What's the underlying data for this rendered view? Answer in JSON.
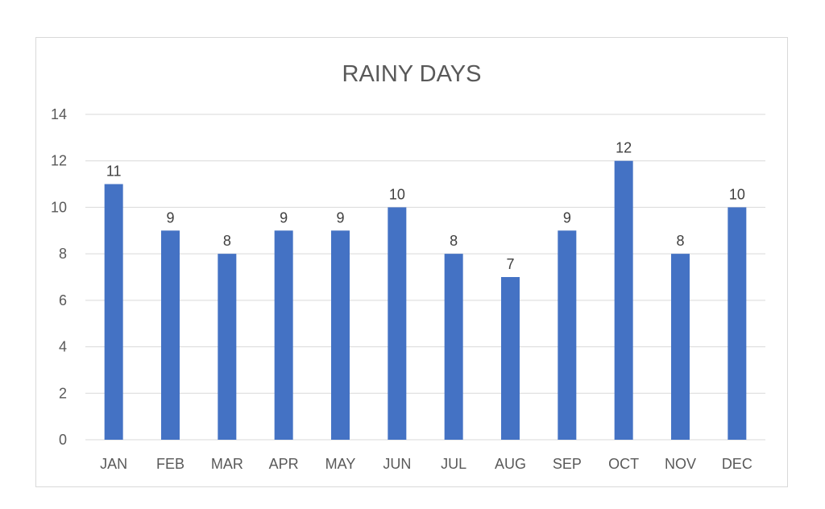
{
  "chart_data": {
    "type": "bar",
    "title": "RAINY DAYS",
    "categories": [
      "JAN",
      "FEB",
      "MAR",
      "APR",
      "MAY",
      "JUN",
      "JUL",
      "AUG",
      "SEP",
      "OCT",
      "NOV",
      "DEC"
    ],
    "values": [
      11,
      9,
      8,
      9,
      9,
      10,
      8,
      7,
      9,
      12,
      8,
      10
    ],
    "ylim": [
      0,
      14
    ],
    "yticks": [
      0,
      2,
      4,
      6,
      8,
      10,
      12,
      14
    ],
    "grid": true,
    "legend": "none",
    "bar_color": "#4472C4",
    "data_labels": true
  }
}
